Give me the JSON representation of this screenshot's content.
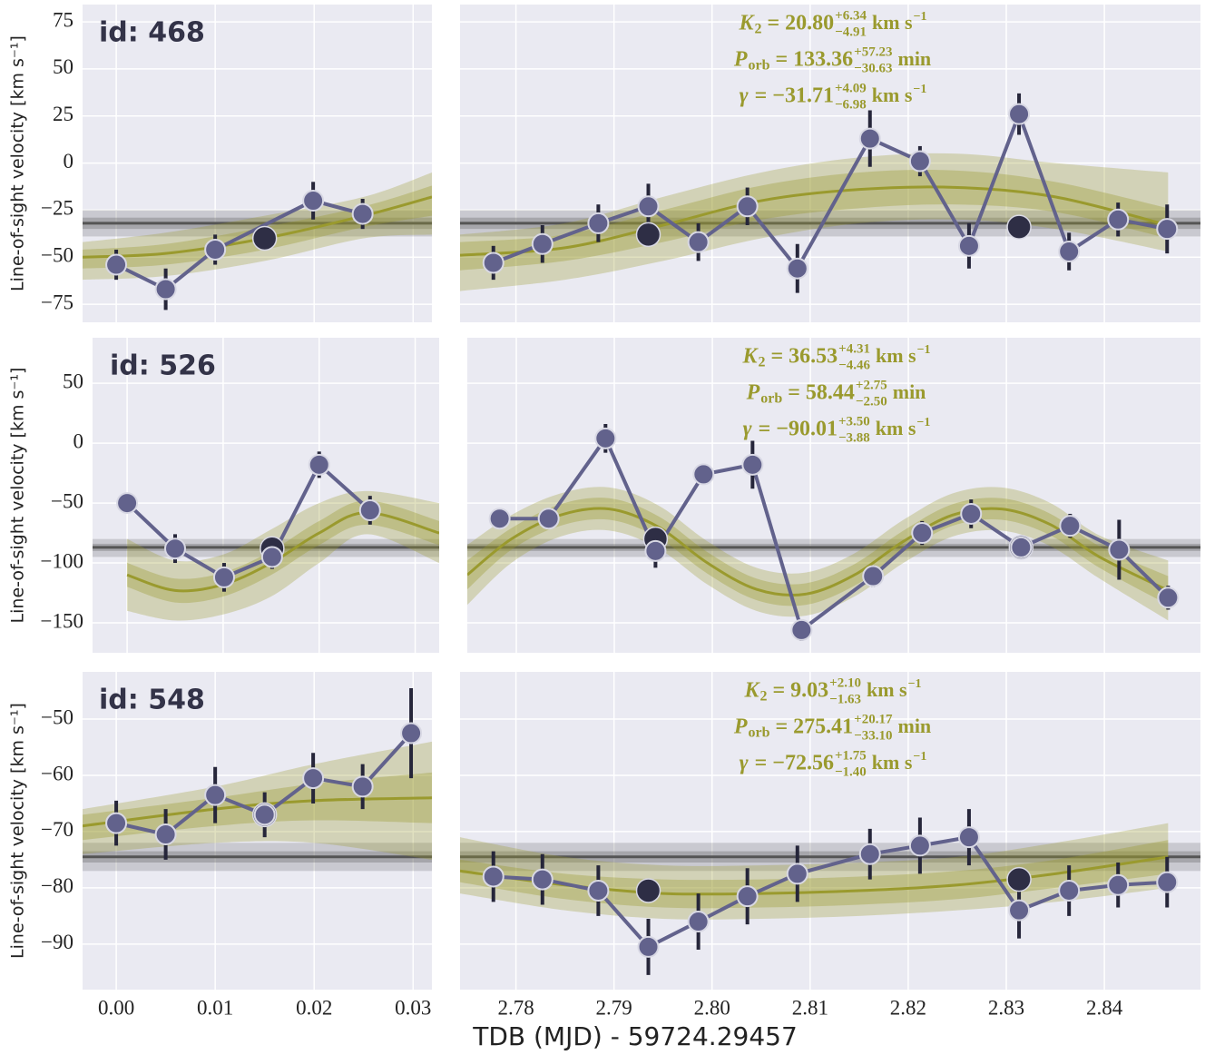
{
  "chart_data": [
    {
      "type": "errorbar",
      "label": "id: 468",
      "ylabel": "Line-of-sight velocity [km s⁻¹]",
      "ylim": [
        -84.6,
        84.2
      ],
      "yticks": [
        {
          "value": -75,
          "label": "−75"
        },
        {
          "value": -50,
          "label": "−50"
        },
        {
          "value": -25,
          "label": "−25"
        },
        0,
        25,
        50,
        75
      ],
      "grid": true,
      "show_xtick_labels": false,
      "colors": {
        "points": "#62628c",
        "highlight": "#2e2e45",
        "model": "#9a9a2e",
        "gamma": "#555555"
      },
      "gamma_line": {
        "value": -32,
        "inner": [
          -35,
          -29
        ],
        "outer": [
          -39,
          -25
        ]
      },
      "annotations": [
        {
          "symbol": "K",
          "sub": "2",
          "value": "= 20.80",
          "plus": "+6.34",
          "minus": "−4.91",
          "unit": "km s",
          "unit_exp": "−1"
        },
        {
          "symbol": "P",
          "sub": "orb",
          "value": "= 133.36",
          "plus": "+57.23",
          "minus": "−30.63",
          "unit": "min"
        },
        {
          "symbol": "γ",
          "value": "= −31.71",
          "plus": "+4.09",
          "minus": "−6.98",
          "unit": "km s",
          "unit_exp": "−1"
        }
      ],
      "panels": [
        {
          "xlim": [
            -0.0034,
            0.0319
          ],
          "xticks": [
            0,
            0.01,
            0.02,
            0.03
          ],
          "points": {
            "x": [
              0,
              0.005,
              0.01,
              0.0199,
              0.0249
            ],
            "values": [
              -54,
              -67,
              -46,
              -20,
              -27
            ],
            "errors": [
              8,
              11,
              8,
              10,
              8
            ]
          },
          "highlight": {
            "x": [
              0.015
            ],
            "values": [
              -40
            ]
          },
          "model": {
            "x": [
              -0.0034,
              0.005,
              0.015,
              0.025,
              0.0319
            ],
            "values": [
              -50,
              -48,
              -40,
              -28,
              -18
            ],
            "outer_lower": [
              -62,
              -60,
              -52,
              -40,
              -38
            ],
            "outer_upper": [
              -42,
              -37,
              -28,
              -18,
              -5
            ],
            "inner_lower": [
              -56,
              -54,
              -46,
              -34,
              -28
            ],
            "inner_upper": [
              -46,
              -43,
              -34,
              -23,
              -12
            ]
          }
        },
        {
          "xlim": [
            2.7743,
            2.8498
          ],
          "xticks": [
            2.78,
            2.79,
            2.8,
            2.81,
            2.82,
            2.83,
            2.84
          ],
          "points": {
            "x": [
              2.7777,
              2.7827,
              2.7884,
              2.7935,
              2.7986,
              2.8036,
              2.8087,
              2.8161,
              2.8212,
              2.8262,
              2.8313,
              2.8364,
              2.8414,
              2.8464
            ],
            "values": [
              -53,
              -43,
              -32,
              -23,
              -42,
              -23,
              -56,
              13,
              1,
              -44,
              26,
              -47,
              -30,
              -35
            ],
            "errors": [
              9,
              10,
              10,
              12,
              10,
              10,
              13,
              15,
              8,
              12,
              11,
              10,
              9,
              13
            ]
          },
          "highlight": {
            "x": [
              2.7935,
              2.8313
            ],
            "values": [
              -38,
              -34
            ]
          },
          "model": {
            "x": [
              2.7743,
              2.785,
              2.795,
              2.805,
              2.815,
              2.825,
              2.835,
              2.8465
            ],
            "values": [
              -49,
              -45,
              -33,
              -20,
              -14,
              -13,
              -18,
              -33
            ],
            "outer_lower": [
              -68,
              -62,
              -52,
              -40,
              -32,
              -30,
              -35,
              -47
            ],
            "outer_upper": [
              -38,
              -32,
              -18,
              -5,
              3,
              5,
              0,
              -5
            ],
            "inner_lower": [
              -57,
              -52,
              -42,
              -30,
              -24,
              -22,
              -26,
              -40
            ],
            "inner_upper": [
              -42,
              -38,
              -25,
              -12,
              -5,
              -4,
              -10,
              -24
            ]
          }
        }
      ]
    },
    {
      "type": "errorbar",
      "label": "id: 526",
      "ylabel": "Line-of-sight velocity [km s⁻¹]",
      "ylim": [
        -175,
        88
      ],
      "yticks": [
        {
          "value": -150,
          "label": "−150"
        },
        {
          "value": -100,
          "label": "−100"
        },
        {
          "value": -50,
          "label": "−50"
        },
        0,
        50
      ],
      "grid": true,
      "show_xtick_labels": false,
      "colors": {
        "points": "#62628c",
        "highlight": "#2e2e45",
        "model": "#9a9a2e",
        "gamma": "#555555"
      },
      "gamma_line": {
        "value": -87,
        "inner": [
          -90,
          -84
        ],
        "outer": [
          -95,
          -80
        ]
      },
      "annotations": [
        {
          "symbol": "K",
          "sub": "2",
          "value": "= 36.53",
          "plus": "+4.31",
          "minus": "−4.46",
          "unit": "km s",
          "unit_exp": "−1"
        },
        {
          "symbol": "P",
          "sub": "orb",
          "value": "= 58.44",
          "plus": "+2.75",
          "minus": "−2.50",
          "unit": "min"
        },
        {
          "symbol": "γ",
          "value": "= −90.01",
          "plus": "+3.50",
          "minus": "−3.88",
          "unit": "km s",
          "unit_exp": "−1"
        }
      ],
      "panels": [
        {
          "xlim": [
            -0.0036,
            0.0325
          ],
          "xticks": [
            0,
            0.01,
            0.02,
            0.03
          ],
          "points": {
            "x": [
              0,
              0.005,
              0.0101,
              0.0151,
              0.02,
              0.0253
            ],
            "values": [
              -50,
              -88,
              -112,
              -95,
              -18,
              -56
            ],
            "errors": [
              4,
              12,
              12,
              10,
              11,
              12
            ]
          },
          "highlight": {
            "x": [
              0.0151
            ],
            "values": [
              -88
            ]
          },
          "model": {
            "x": [
              0,
              0.005,
              0.01,
              0.015,
              0.02,
              0.025,
              0.0325
            ],
            "values": [
              -110,
              -123,
              -118,
              -100,
              -75,
              -58,
              -75
            ],
            "outer_lower": [
              -140,
              -148,
              -143,
              -128,
              -100,
              -76,
              -100
            ],
            "outer_upper": [
              -80,
              -98,
              -93,
              -72,
              -50,
              -40,
              -50
            ],
            "inner_lower": [
              -120,
              -133,
              -128,
              -110,
              -85,
              -68,
              -85
            ],
            "inner_upper": [
              -100,
              -113,
              -108,
              -90,
              -65,
              -48,
              -65
            ]
          }
        },
        {
          "xlim": [
            2.775,
            2.8498
          ],
          "xticks": [
            2.78,
            2.79,
            2.8,
            2.81,
            2.82,
            2.83,
            2.84
          ],
          "points": {
            "x": [
              2.7783,
              2.7833,
              2.7891,
              2.7942,
              2.7991,
              2.8041,
              2.8091,
              2.8164,
              2.8214,
              2.8264,
              2.8315,
              2.8365,
              2.8415,
              2.8465
            ],
            "values": [
              -63,
              -63,
              4,
              -90,
              -26,
              -18,
              -156,
              -111,
              -75,
              -59,
              -87,
              -69,
              -89,
              -129
            ],
            "errors": [
              5,
              5,
              12,
              14,
              8,
              20,
              9,
              9,
              10,
              12,
              8,
              10,
              25,
              10
            ]
          },
          "highlight": {
            "x": [
              2.7942,
              2.8315
            ],
            "values": [
              -80,
              -87
            ]
          },
          "model": {
            "x": [
              2.775,
              2.7795,
              2.7845,
              2.7895,
              2.7945,
              2.7995,
              2.8045,
              2.8095,
              2.8145,
              2.8195,
              2.8245,
              2.8295,
              2.8345,
              2.8395,
              2.8465
            ],
            "values": [
              -110,
              -80,
              -60,
              -55,
              -70,
              -100,
              -122,
              -126,
              -110,
              -82,
              -60,
              -55,
              -68,
              -95,
              -123
            ],
            "outer_lower": [
              -135,
              -100,
              -78,
              -73,
              -88,
              -118,
              -140,
              -144,
              -128,
              -100,
              -78,
              -73,
              -86,
              -113,
              -148
            ],
            "outer_upper": [
              -85,
              -60,
              -42,
              -37,
              -52,
              -82,
              -104,
              -108,
              -92,
              -64,
              -42,
              -37,
              -50,
              -77,
              -98
            ],
            "inner_lower": [
              -122,
              -89,
              -69,
              -64,
              -79,
              -109,
              -131,
              -135,
              -119,
              -91,
              -69,
              -64,
              -77,
              -104,
              -135
            ],
            "inner_upper": [
              -98,
              -71,
              -51,
              -46,
              -61,
              -91,
              -113,
              -117,
              -101,
              -73,
              -51,
              -46,
              -59,
              -86,
              -111
            ]
          }
        }
      ]
    },
    {
      "type": "errorbar",
      "label": "id: 548",
      "ylabel": "Line-of-sight velocity [km s⁻¹]",
      "ylim": [
        -98.1,
        -41.6
      ],
      "yticks": [
        {
          "value": -90,
          "label": "−90"
        },
        {
          "value": -80,
          "label": "−80"
        },
        {
          "value": -70,
          "label": "−70"
        },
        {
          "value": -60,
          "label": "−60"
        },
        {
          "value": -50,
          "label": "−50"
        }
      ],
      "grid": true,
      "show_xtick_labels": true,
      "colors": {
        "points": "#62628c",
        "highlight": "#2e2e45",
        "model": "#9a9a2e",
        "gamma": "#555555"
      },
      "gamma_line": {
        "value": -74.5,
        "inner": [
          -75.5,
          -73.5
        ],
        "outer": [
          -77,
          -72
        ]
      },
      "annotations": [
        {
          "symbol": "K",
          "sub": "2",
          "value": "= 9.03",
          "plus": "+2.10",
          "minus": "−1.63",
          "unit": "km s",
          "unit_exp": "−1"
        },
        {
          "symbol": "P",
          "sub": "orb",
          "value": "= 275.41",
          "plus": "+20.17",
          "minus": "−33.10",
          "unit": "min"
        },
        {
          "symbol": "γ",
          "value": "= −72.56",
          "plus": "+1.75",
          "minus": "−1.40",
          "unit": "km s",
          "unit_exp": "−1"
        }
      ],
      "panels": [
        {
          "xlim": [
            -0.0034,
            0.0319
          ],
          "xticks": [
            {
              "value": 0,
              "label": "0.00"
            },
            0.01,
            0.02,
            0.03
          ],
          "points": {
            "x": [
              0,
              0.005,
              0.01,
              0.015,
              0.0199,
              0.0249,
              0.0298
            ],
            "values": [
              -68.5,
              -70.5,
              -63.5,
              -67,
              -60.5,
              -62,
              -52.5
            ],
            "errors": [
              4,
              4.5,
              5,
              4,
              4.5,
              4,
              8
            ]
          },
          "highlight": {
            "x": [
              0.015
            ],
            "values": [
              -67
            ]
          },
          "model": {
            "x": [
              -0.0034,
              0.01,
              0.02,
              0.0319
            ],
            "values": [
              -69,
              -66,
              -64.5,
              -64
            ],
            "outer_lower": [
              -74,
              -72,
              -72,
              -75
            ],
            "outer_upper": [
              -66,
              -62,
              -58,
              -54
            ],
            "inner_lower": [
              -71.5,
              -69,
              -68,
              -68.5
            ],
            "inner_upper": [
              -67,
              -64,
              -61.5,
              -59.5
            ]
          }
        },
        {
          "xlim": [
            2.7743,
            2.8498
          ],
          "xticks": [
            2.78,
            2.79,
            {
              "value": 2.8,
              "label": "2.80"
            },
            2.81,
            2.82,
            2.83,
            2.84
          ],
          "points": {
            "x": [
              2.7777,
              2.7827,
              2.7884,
              2.7935,
              2.7986,
              2.8036,
              2.8087,
              2.8161,
              2.8212,
              2.8262,
              2.8313,
              2.8364,
              2.8414,
              2.8464
            ],
            "values": [
              -78,
              -78.5,
              -80.5,
              -90.5,
              -86,
              -81.5,
              -77.5,
              -74,
              -72.5,
              -71,
              -84,
              -80.5,
              -79.5,
              -79
            ],
            "errors": [
              4.5,
              4.5,
              4.5,
              5,
              5,
              5,
              5,
              4.5,
              5,
              5,
              5,
              4.5,
              4,
              4.5
            ]
          },
          "highlight": {
            "x": [
              2.7935,
              2.8313
            ],
            "values": [
              -80.5,
              -78.5
            ]
          },
          "model": {
            "x": [
              2.7743,
              2.785,
              2.795,
              2.805,
              2.815,
              2.825,
              2.835,
              2.8465
            ],
            "values": [
              -77,
              -79.5,
              -81,
              -81,
              -80.5,
              -79.5,
              -77.5,
              -74.5
            ],
            "outer_lower": [
              -81,
              -84,
              -85.5,
              -85.5,
              -85,
              -84,
              -82.5,
              -80
            ],
            "outer_upper": [
              -71,
              -74.5,
              -76,
              -76,
              -75.5,
              -74.5,
              -72,
              -68.5
            ],
            "inner_lower": [
              -79,
              -82,
              -83.5,
              -83.5,
              -83,
              -82,
              -80,
              -77.5
            ],
            "inner_upper": [
              -75,
              -77.5,
              -78.5,
              -78.5,
              -78,
              -77,
              -75,
              -71.5
            ]
          }
        }
      ]
    }
  ],
  "xlabel": "TDB (MJD) - 59724.29457"
}
